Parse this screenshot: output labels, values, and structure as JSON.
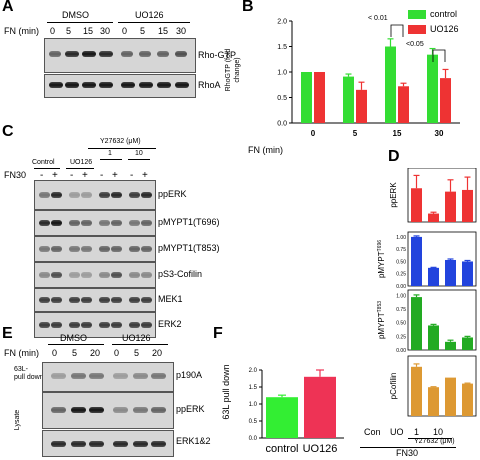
{
  "panels": {
    "A": {
      "label": "A",
      "group1": "DMSO",
      "group2": "UO126",
      "fn_label": "FN (min)",
      "timepoints": [
        "0",
        "5",
        "15",
        "30",
        "0",
        "5",
        "15",
        "30"
      ],
      "rows": [
        "Rho-GTP",
        "RhoA"
      ]
    },
    "B": {
      "label": "B",
      "ylabel": "RhoGTP (fold change)",
      "xlabel": "FN (min)",
      "sig1": "< 0.01",
      "sig2": "<0.05",
      "legend": [
        {
          "name": "control",
          "color": "#33dd33"
        },
        {
          "name": "UO126",
          "color": "#ee3333"
        }
      ]
    },
    "C": {
      "label": "C",
      "y27632_label": "Y27632 (μM)",
      "y_doses": [
        "1",
        "10"
      ],
      "group_labels": [
        "Control",
        "UO126"
      ],
      "fn30_label": "FN30",
      "fn_signs": [
        "-",
        "+",
        "-",
        "+",
        "-",
        "+",
        "-",
        "+"
      ],
      "rows": [
        "ppERK",
        "pMYPT1(T696)",
        "pMYPT1(T853)",
        "pS3-Cofilin",
        "MEK1",
        "ERK2"
      ]
    },
    "D": {
      "label": "D",
      "xcats": [
        "Con",
        "UO",
        "1",
        "10"
      ],
      "y27632_label": "Y27632 (μM)",
      "fn30_label": "FN30"
    },
    "E": {
      "label": "E",
      "group1": "DMSO",
      "group2": "UO126",
      "fn_label": "FN (min)",
      "timepoints": [
        "0",
        "5",
        "20",
        "0",
        "5",
        "20"
      ],
      "pulldown_label": "63L-\npull down",
      "lysate_label": "Lysate",
      "rows": [
        "p190A",
        "ppERK",
        "ERK1&2"
      ]
    },
    "F": {
      "label": "F",
      "ylabel": "63L pull down"
    }
  },
  "chart_data": [
    {
      "id": "B",
      "type": "bar",
      "categories": [
        "0",
        "5",
        "15",
        "30"
      ],
      "xlabel": "FN (min)",
      "ylabel": "RhoGTP (fold change)",
      "ylim": [
        0,
        2.0
      ],
      "yticks": [
        "0.0",
        "0.5",
        "1.0",
        "1.5",
        "2.0"
      ],
      "series": [
        {
          "name": "control",
          "color": "#33dd33",
          "values": [
            1.0,
            0.91,
            1.5,
            1.34
          ],
          "errors": [
            0,
            0.05,
            0.15,
            0.12
          ]
        },
        {
          "name": "UO126",
          "color": "#ee3333",
          "values": [
            1.0,
            0.65,
            0.72,
            0.88
          ],
          "errors": [
            0,
            0.15,
            0.06,
            0.17
          ]
        }
      ]
    },
    {
      "id": "D1",
      "type": "bar",
      "categories": [
        "Con",
        "UO",
        "1",
        "10"
      ],
      "ylabel": "ppERK",
      "color": "#ee3333",
      "values": [
        1.0,
        0.25,
        0.9,
        0.95
      ],
      "errors": [
        0.38,
        0.04,
        0.35,
        0.38
      ],
      "ylim": [
        0,
        1.6
      ],
      "yticks": []
    },
    {
      "id": "D2",
      "type": "bar",
      "categories": [
        "Con",
        "UO",
        "1",
        "10"
      ],
      "ylabel": "pMYPT",
      "ylabel_sup": "T696",
      "color": "#2244dd",
      "values": [
        1.0,
        0.37,
        0.53,
        0.5
      ],
      "errors": [
        0.02,
        0.01,
        0.02,
        0.02
      ],
      "ylim": [
        0.0,
        1.1
      ],
      "yticks": [
        "1.00",
        "0.75",
        "0.50",
        "0.25",
        "0.00"
      ]
    },
    {
      "id": "D3",
      "type": "bar",
      "categories": [
        "Con",
        "UO",
        "1",
        "10"
      ],
      "ylabel": "pMYPT",
      "ylabel_sup": "T853",
      "color": "#22aa22",
      "values": [
        0.97,
        0.45,
        0.15,
        0.23
      ],
      "errors": [
        0.04,
        0.02,
        0.03,
        0.02
      ],
      "ylim": [
        0.0,
        1.1
      ],
      "yticks": [
        "1.00",
        "0.75",
        "0.50",
        "0.25",
        "0.00"
      ]
    },
    {
      "id": "D4",
      "type": "bar",
      "categories": [
        "Con",
        "UO",
        "1",
        "10"
      ],
      "ylabel": "pCofilin",
      "color": "#dd9933",
      "values": [
        2.05,
        1.2,
        1.6,
        1.35
      ],
      "errors": [
        0.12,
        0.02,
        0.0,
        0.02
      ],
      "ylim": [
        0,
        2.5
      ],
      "yticks": []
    },
    {
      "id": "F",
      "type": "bar",
      "categories": [
        "control",
        "UO126"
      ],
      "ylabel": "63L pull down",
      "ylim": [
        0,
        2.0
      ],
      "yticks": [
        "0.0",
        "0.5",
        "1.0",
        "1.5",
        "2.0"
      ],
      "series_colors": [
        "#33ee33",
        "#ee3355"
      ],
      "values": [
        1.2,
        1.8
      ],
      "errors": [
        0.06,
        0.2
      ]
    }
  ]
}
